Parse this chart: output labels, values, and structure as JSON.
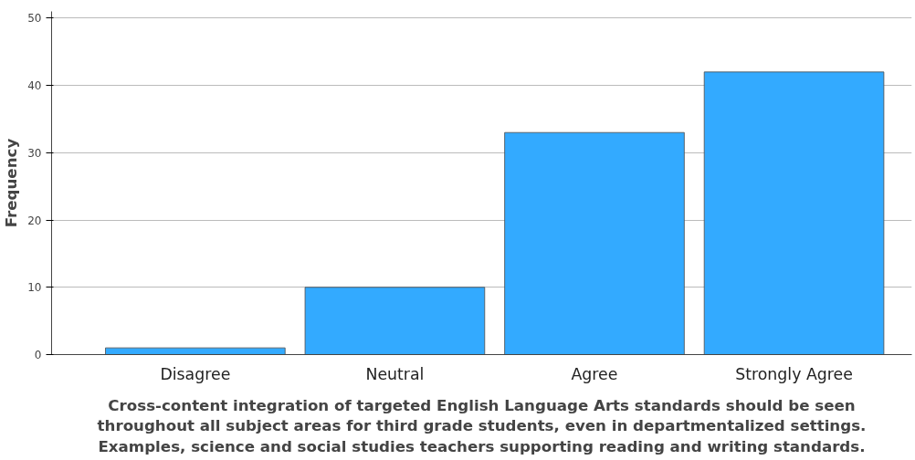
{
  "chart_data": {
    "type": "bar",
    "categories": [
      "Disagree",
      "Neutral",
      "Agree",
      "Strongly Agree"
    ],
    "values": [
      1,
      10,
      33,
      42
    ],
    "color": "#33aaff",
    "xlabel": "Cross-content integration of targeted English Language Arts standards should be seen throughout all subject areas for third grade students, even in departmentalized settings. Examples, science and social studies teachers supporting reading and writing standards.",
    "ylabel": "Frequency",
    "ylim": [
      0,
      51
    ],
    "yticks": [
      0,
      10,
      20,
      30,
      40,
      50
    ],
    "grid": "y"
  }
}
